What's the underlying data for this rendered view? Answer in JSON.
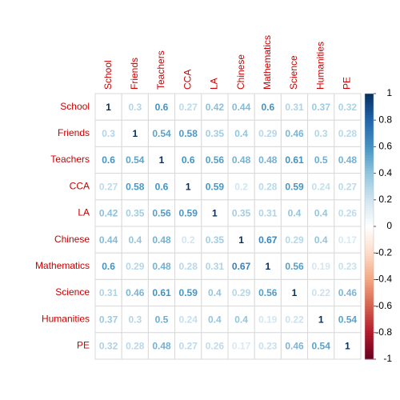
{
  "chart_data": {
    "type": "corrplot",
    "labels": [
      "School",
      "Friends",
      "Teachers",
      "CCA",
      "LA",
      "Chinese",
      "Mathematics",
      "Science",
      "Humanities",
      "PE"
    ],
    "matrix": [
      [
        1,
        0.3,
        0.6,
        0.27,
        0.42,
        0.44,
        0.6,
        0.31,
        0.37,
        0.32
      ],
      [
        0.3,
        1,
        0.54,
        0.58,
        0.35,
        0.4,
        0.29,
        0.46,
        0.3,
        0.28
      ],
      [
        0.6,
        0.54,
        1,
        0.6,
        0.56,
        0.48,
        0.48,
        0.61,
        0.5,
        0.48
      ],
      [
        0.27,
        0.58,
        0.6,
        1,
        0.59,
        0.2,
        0.28,
        0.59,
        0.24,
        0.27
      ],
      [
        0.42,
        0.35,
        0.56,
        0.59,
        1,
        0.35,
        0.31,
        0.4,
        0.4,
        0.26
      ],
      [
        0.44,
        0.4,
        0.48,
        0.2,
        0.35,
        1,
        0.67,
        0.29,
        0.4,
        0.17
      ],
      [
        0.6,
        0.29,
        0.48,
        0.28,
        0.31,
        0.67,
        1,
        0.56,
        0.19,
        0.23
      ],
      [
        0.31,
        0.46,
        0.61,
        0.59,
        0.4,
        0.29,
        0.56,
        1,
        0.22,
        0.46
      ],
      [
        0.37,
        0.3,
        0.5,
        0.24,
        0.4,
        0.4,
        0.19,
        0.22,
        1,
        0.54
      ],
      [
        0.32,
        0.28,
        0.48,
        0.27,
        0.26,
        0.17,
        0.23,
        0.46,
        0.54,
        1
      ]
    ],
    "clim": [
      -1,
      1
    ],
    "colorbar_ticks": [
      -1,
      -0.8,
      -0.6,
      -0.4,
      -0.2,
      0,
      0.2,
      0.4,
      0.6,
      0.8,
      1
    ],
    "colorscale": [
      "#67001F",
      "#B2182B",
      "#D6604D",
      "#F4A582",
      "#FDDBC7",
      "#FFFFFF",
      "#D1E5F0",
      "#92C5DE",
      "#4393C3",
      "#2166AC",
      "#053061"
    ],
    "label_color": "#cc0000"
  }
}
